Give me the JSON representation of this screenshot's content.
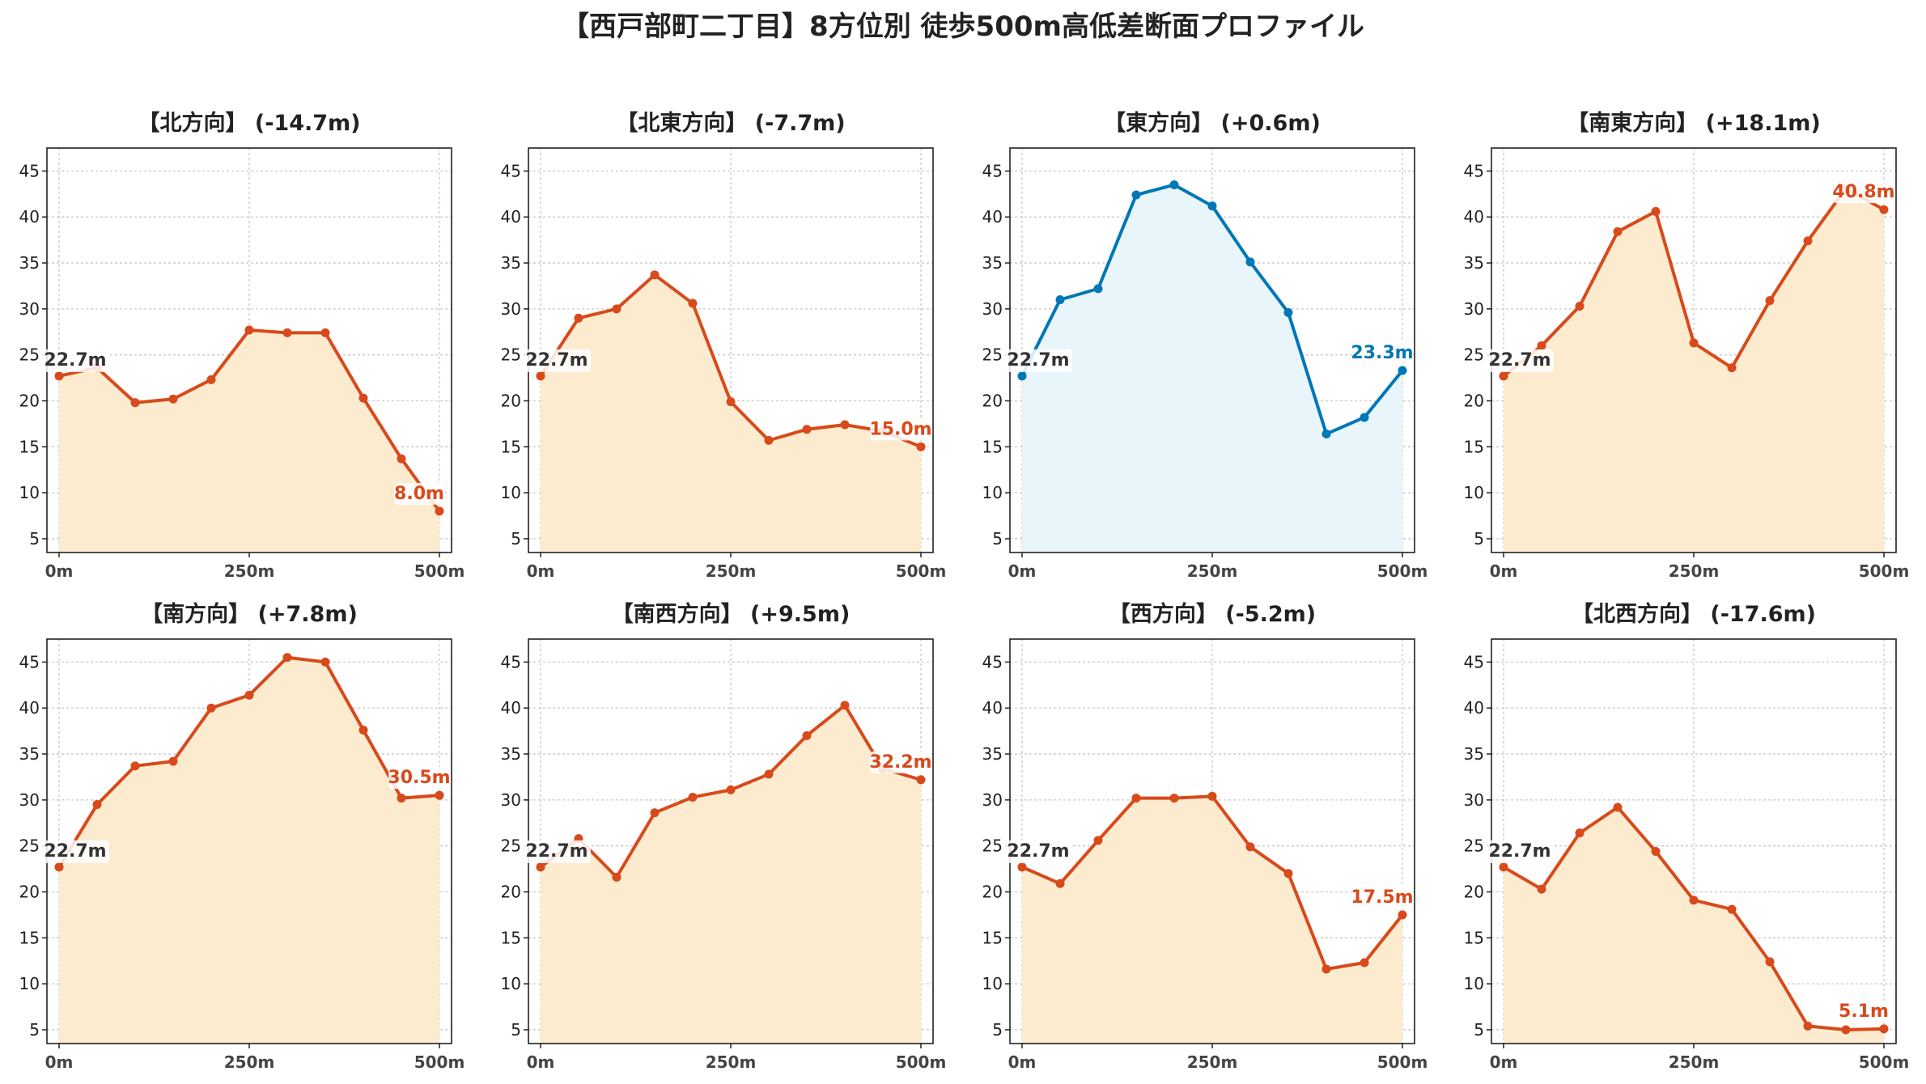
{
  "title": "【西戸部町二丁目】8方位別 徒歩500m高低差断面プロファイル",
  "colors": {
    "downhill_line": "#d84a1b",
    "downhill_fill": "#fdebd0",
    "uphill_line": "#0077b6",
    "uphill_fill": "#e8f6fc",
    "start_label": "#333333"
  },
  "chart_data": [
    {
      "type": "area",
      "title": "【北方向】 (-14.7m)",
      "style": "orange",
      "x": [
        0,
        50,
        100,
        150,
        200,
        250,
        300,
        350,
        400,
        450,
        500
      ],
      "y": [
        22.7,
        23.6,
        19.8,
        20.2,
        22.3,
        27.7,
        27.4,
        27.4,
        20.3,
        13.7,
        8.0
      ],
      "start_label": "22.7m",
      "end_label": "8.0m",
      "xticks": [
        "0m",
        "250m",
        "500m"
      ],
      "yticks": [
        "5",
        "10",
        "15",
        "20",
        "25",
        "30",
        "35",
        "40",
        "45"
      ],
      "xlim": [
        0,
        500
      ],
      "ylim": [
        3.5,
        47.5
      ],
      "grid": true
    },
    {
      "type": "area",
      "title": "【北東方向】 (-7.7m)",
      "style": "orange",
      "x": [
        0,
        50,
        100,
        150,
        200,
        250,
        300,
        350,
        400,
        450,
        500
      ],
      "y": [
        22.7,
        29.0,
        30.0,
        33.7,
        30.6,
        19.9,
        15.7,
        16.9,
        17.4,
        16.7,
        15.0
      ],
      "start_label": "22.7m",
      "end_label": "15.0m",
      "xticks": [
        "0m",
        "250m",
        "500m"
      ],
      "yticks": [
        "5",
        "10",
        "15",
        "20",
        "25",
        "30",
        "35",
        "40",
        "45"
      ],
      "xlim": [
        0,
        500
      ],
      "ylim": [
        3.5,
        47.5
      ],
      "grid": true
    },
    {
      "type": "area",
      "title": "【東方向】 (+0.6m)",
      "style": "blue",
      "x": [
        0,
        50,
        100,
        150,
        200,
        250,
        300,
        350,
        400,
        450,
        500
      ],
      "y": [
        22.7,
        31.0,
        32.2,
        42.4,
        43.5,
        41.2,
        35.1,
        29.6,
        16.4,
        18.2,
        23.3
      ],
      "start_label": "22.7m",
      "end_label": "23.3m",
      "xticks": [
        "0m",
        "250m",
        "500m"
      ],
      "yticks": [
        "5",
        "10",
        "15",
        "20",
        "25",
        "30",
        "35",
        "40",
        "45"
      ],
      "xlim": [
        0,
        500
      ],
      "ylim": [
        3.5,
        47.5
      ],
      "grid": true
    },
    {
      "type": "area",
      "title": "【南東方向】 (+18.1m)",
      "style": "orange",
      "x": [
        0,
        50,
        100,
        150,
        200,
        250,
        300,
        350,
        400,
        450,
        500
      ],
      "y": [
        22.7,
        26.0,
        30.3,
        38.4,
        40.6,
        26.3,
        23.6,
        30.9,
        37.4,
        43.1,
        40.8
      ],
      "start_label": "22.7m",
      "end_label": "40.8m",
      "xticks": [
        "0m",
        "250m",
        "500m"
      ],
      "yticks": [
        "5",
        "10",
        "15",
        "20",
        "25",
        "30",
        "35",
        "40",
        "45"
      ],
      "xlim": [
        0,
        500
      ],
      "ylim": [
        3.5,
        47.5
      ],
      "grid": true
    },
    {
      "type": "area",
      "title": "【南方向】 (+7.8m)",
      "style": "orange",
      "x": [
        0,
        50,
        100,
        150,
        200,
        250,
        300,
        350,
        400,
        450,
        500
      ],
      "y": [
        22.7,
        29.5,
        33.7,
        34.2,
        40.0,
        41.4,
        45.5,
        45.0,
        37.6,
        30.2,
        30.5
      ],
      "start_label": "22.7m",
      "end_label": "30.5m",
      "xticks": [
        "0m",
        "250m",
        "500m"
      ],
      "yticks": [
        "5",
        "10",
        "15",
        "20",
        "25",
        "30",
        "35",
        "40",
        "45"
      ],
      "xlim": [
        0,
        500
      ],
      "ylim": [
        3.5,
        47.5
      ],
      "grid": true
    },
    {
      "type": "area",
      "title": "【南西方向】 (+9.5m)",
      "style": "orange",
      "x": [
        0,
        50,
        100,
        150,
        200,
        250,
        300,
        350,
        400,
        450,
        500
      ],
      "y": [
        22.7,
        25.8,
        21.6,
        28.6,
        30.3,
        31.1,
        32.8,
        37.0,
        40.3,
        33.4,
        32.2
      ],
      "start_label": "22.7m",
      "end_label": "32.2m",
      "xticks": [
        "0m",
        "250m",
        "500m"
      ],
      "yticks": [
        "5",
        "10",
        "15",
        "20",
        "25",
        "30",
        "35",
        "40",
        "45"
      ],
      "xlim": [
        0,
        500
      ],
      "ylim": [
        3.5,
        47.5
      ],
      "grid": true
    },
    {
      "type": "area",
      "title": "【西方向】 (-5.2m)",
      "style": "orange",
      "x": [
        0,
        50,
        100,
        150,
        200,
        250,
        300,
        350,
        400,
        450,
        500
      ],
      "y": [
        22.7,
        20.9,
        25.6,
        30.2,
        30.2,
        30.4,
        24.9,
        22.0,
        11.6,
        12.3,
        17.5
      ],
      "start_label": "22.7m",
      "end_label": "17.5m",
      "xticks": [
        "0m",
        "250m",
        "500m"
      ],
      "yticks": [
        "5",
        "10",
        "15",
        "20",
        "25",
        "30",
        "35",
        "40",
        "45"
      ],
      "xlim": [
        0,
        500
      ],
      "ylim": [
        3.5,
        47.5
      ],
      "grid": true
    },
    {
      "type": "area",
      "title": "【北西方向】 (-17.6m)",
      "style": "orange",
      "x": [
        0,
        50,
        100,
        150,
        200,
        250,
        300,
        350,
        400,
        450,
        500
      ],
      "y": [
        22.7,
        20.3,
        26.4,
        29.2,
        24.4,
        19.1,
        18.1,
        12.4,
        5.4,
        5.0,
        5.1
      ],
      "start_label": "22.7m",
      "end_label": "5.1m",
      "xticks": [
        "0m",
        "250m",
        "500m"
      ],
      "yticks": [
        "5",
        "10",
        "15",
        "20",
        "25",
        "30",
        "35",
        "40",
        "45"
      ],
      "xlim": [
        0,
        500
      ],
      "ylim": [
        3.5,
        47.5
      ],
      "grid": true
    }
  ]
}
